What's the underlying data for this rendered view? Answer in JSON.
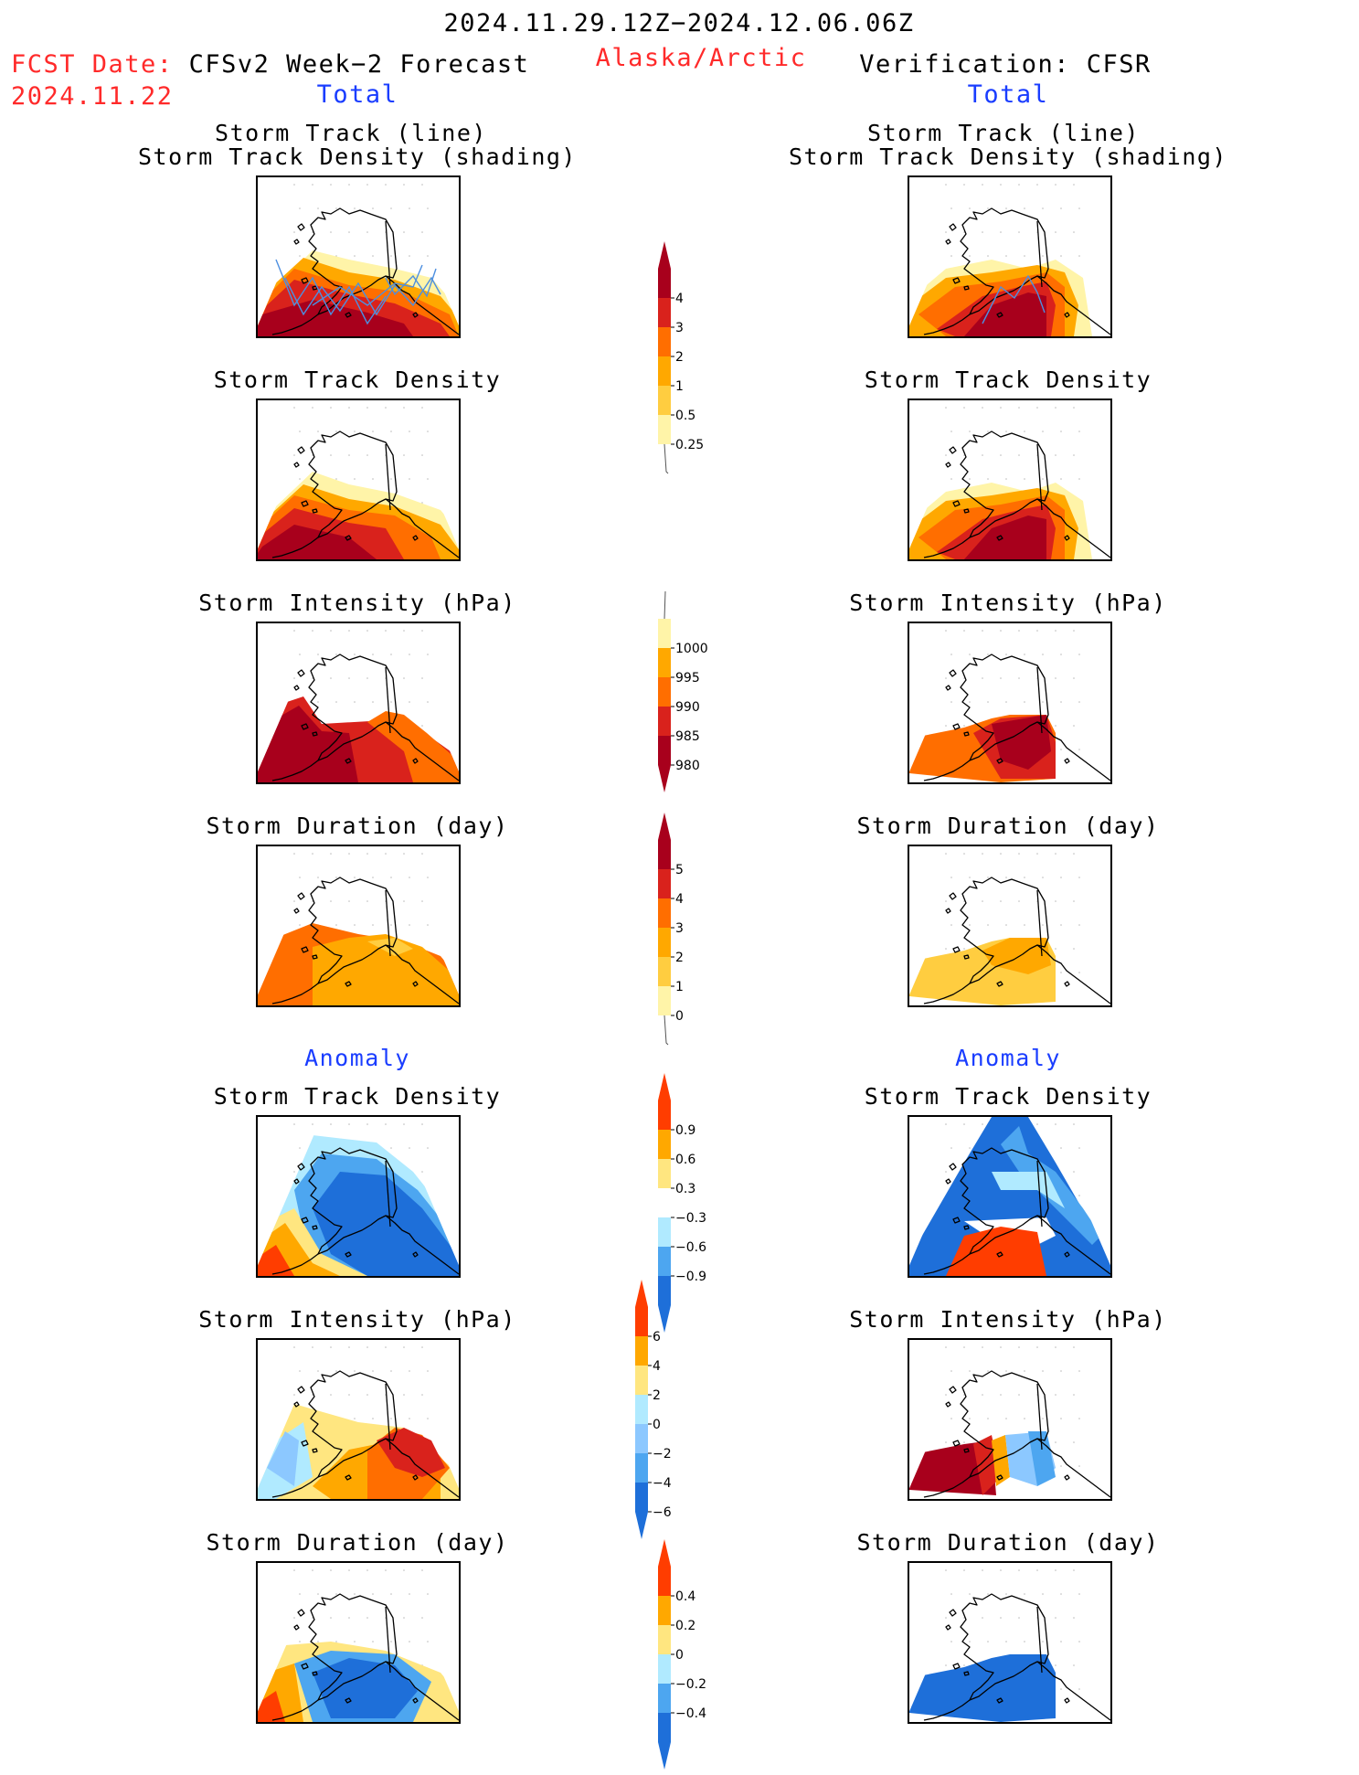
{
  "header": {
    "date_range": "2024.11.29.12Z−2024.12.06.06Z",
    "fcst_label": "FCST Date:",
    "fcst_date": "2024.11.22",
    "left_title": "CFSv2 Week−2 Forecast",
    "region": "Alaska/Arctic",
    "right_title": "Verification: CFSR",
    "left_total": "Total",
    "right_total": "Total",
    "left_anomaly": "Anomaly",
    "right_anomaly": "Anomaly"
  },
  "panel_titles": {
    "track_line": "Storm Track (line)",
    "track_shading": "Storm Track Density (shading)",
    "density": "Storm Track Density",
    "intensity": "Storm Intensity (hPa)",
    "duration": "Storm Duration (day)"
  },
  "colorbars": {
    "density": {
      "labels": [
        "4",
        "3",
        "2",
        "1",
        "0.5",
        "0.25"
      ],
      "colors": [
        "#a8001c",
        "#d9221c",
        "#ff6e00",
        "#ffa800",
        "#ffcd40",
        "#fff4a8"
      ]
    },
    "intensity": {
      "labels": [
        "1000",
        "995",
        "990",
        "985",
        "980"
      ],
      "colors": [
        "#fff4a8",
        "#ffa800",
        "#ff6e00",
        "#d9221c",
        "#a8001c"
      ]
    },
    "duration": {
      "labels": [
        "5",
        "4",
        "3",
        "2",
        "1",
        "0"
      ],
      "colors": [
        "#a8001c",
        "#d9221c",
        "#ff6e00",
        "#ffa800",
        "#ffcd40",
        "#fff4a8"
      ]
    },
    "anom_density": {
      "labels": [
        "0.9",
        "0.6",
        "0.3",
        "−0.3",
        "−0.6",
        "−0.9"
      ],
      "colors": [
        "#ff3d00",
        "#ffa800",
        "#ffe680",
        "#ffffff",
        "#b0eaff",
        "#4da6f0",
        "#1e6fd9"
      ]
    },
    "anom_intensity": {
      "labels": [
        "6",
        "4",
        "2",
        "0",
        "−2",
        "−4",
        "−6"
      ],
      "colors": [
        "#ff3d00",
        "#ffa800",
        "#ffe680",
        "#b0eaff",
        "#8cc8ff",
        "#4da6f0",
        "#1e6fd9"
      ]
    },
    "anom_duration": {
      "labels": [
        "0.4",
        "0.2",
        "0",
        "−0.2",
        "−0.4"
      ],
      "colors": [
        "#ff3d00",
        "#ffa800",
        "#ffe680",
        "#b0eaff",
        "#4da6f0",
        "#1e6fd9"
      ]
    }
  },
  "colors": {
    "accent_red": "#ff2a2a",
    "accent_blue": "#1a3dff"
  }
}
